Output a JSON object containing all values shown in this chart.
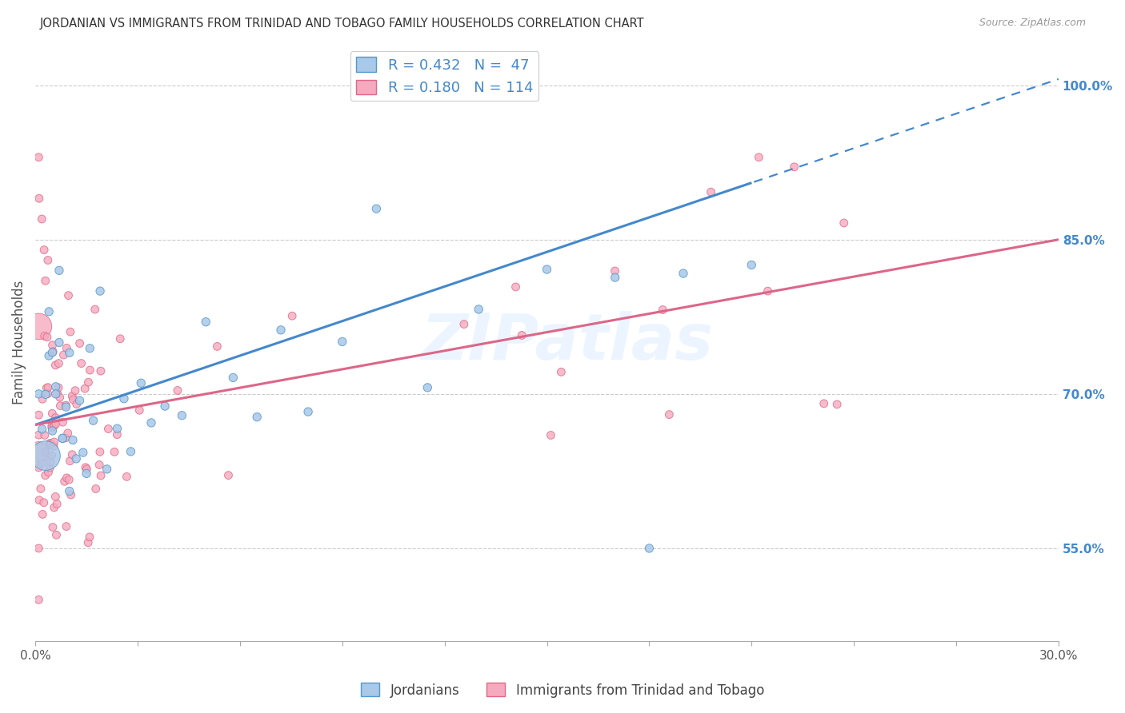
{
  "title": "JORDANIAN VS IMMIGRANTS FROM TRINIDAD AND TOBAGO FAMILY HOUSEHOLDS CORRELATION CHART",
  "source": "Source: ZipAtlas.com",
  "ylabel": "Family Households",
  "xlim": [
    0.0,
    0.3
  ],
  "ylim": [
    0.46,
    1.04
  ],
  "xticks": [
    0.0,
    0.03,
    0.06,
    0.09,
    0.12,
    0.15,
    0.18,
    0.21,
    0.24,
    0.27,
    0.3
  ],
  "xticklabels_show": [
    "0.0%",
    "30.0%"
  ],
  "yticks_right": [
    0.55,
    0.7,
    0.85,
    1.0
  ],
  "ytick_labels_right": [
    "55.0%",
    "70.0%",
    "85.0%",
    "100.0%"
  ],
  "blue_color": "#aac8e8",
  "pink_color": "#f5aabe",
  "blue_edge_color": "#5599cc",
  "pink_edge_color": "#e06888",
  "blue_line_color": "#4488cc",
  "pink_line_color": "#dd6688",
  "jordanians_label": "Jordanians",
  "immigrants_label": "Immigrants from Trinidad and Tobago",
  "watermark": "ZIPatlas",
  "background_color": "#ffffff",
  "grid_color": "#cccccc",
  "title_color": "#333333",
  "right_axis_color": "#4488cc",
  "legend_blue_label": "R = 0.432   N =  47",
  "legend_pink_label": "R = 0.180   N = 114"
}
